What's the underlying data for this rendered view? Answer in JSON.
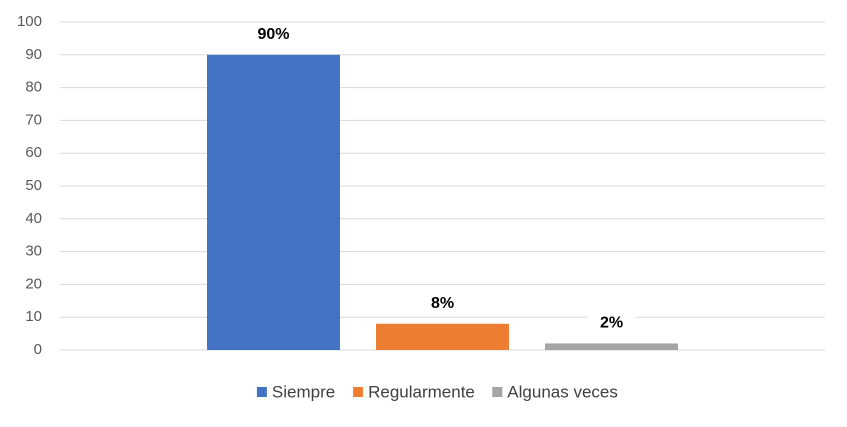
{
  "chart_data": {
    "type": "bar",
    "categories": [
      null
    ],
    "series": [
      {
        "name": "Siempre",
        "color": "#4472c4",
        "values": [
          90
        ],
        "value_labels": [
          "90%"
        ]
      },
      {
        "name": "Regularmente",
        "color": "#ed7d31",
        "values": [
          8
        ],
        "value_labels": [
          "8%"
        ]
      },
      {
        "name": "Algunas veces",
        "color": "#a5a5a5",
        "values": [
          2
        ],
        "value_labels": [
          "2%"
        ]
      }
    ],
    "ylim": [
      0,
      100
    ],
    "yticks": [
      0,
      10,
      20,
      30,
      40,
      50,
      60,
      70,
      80,
      90,
      100
    ],
    "grid": true,
    "legend": "bottom"
  }
}
